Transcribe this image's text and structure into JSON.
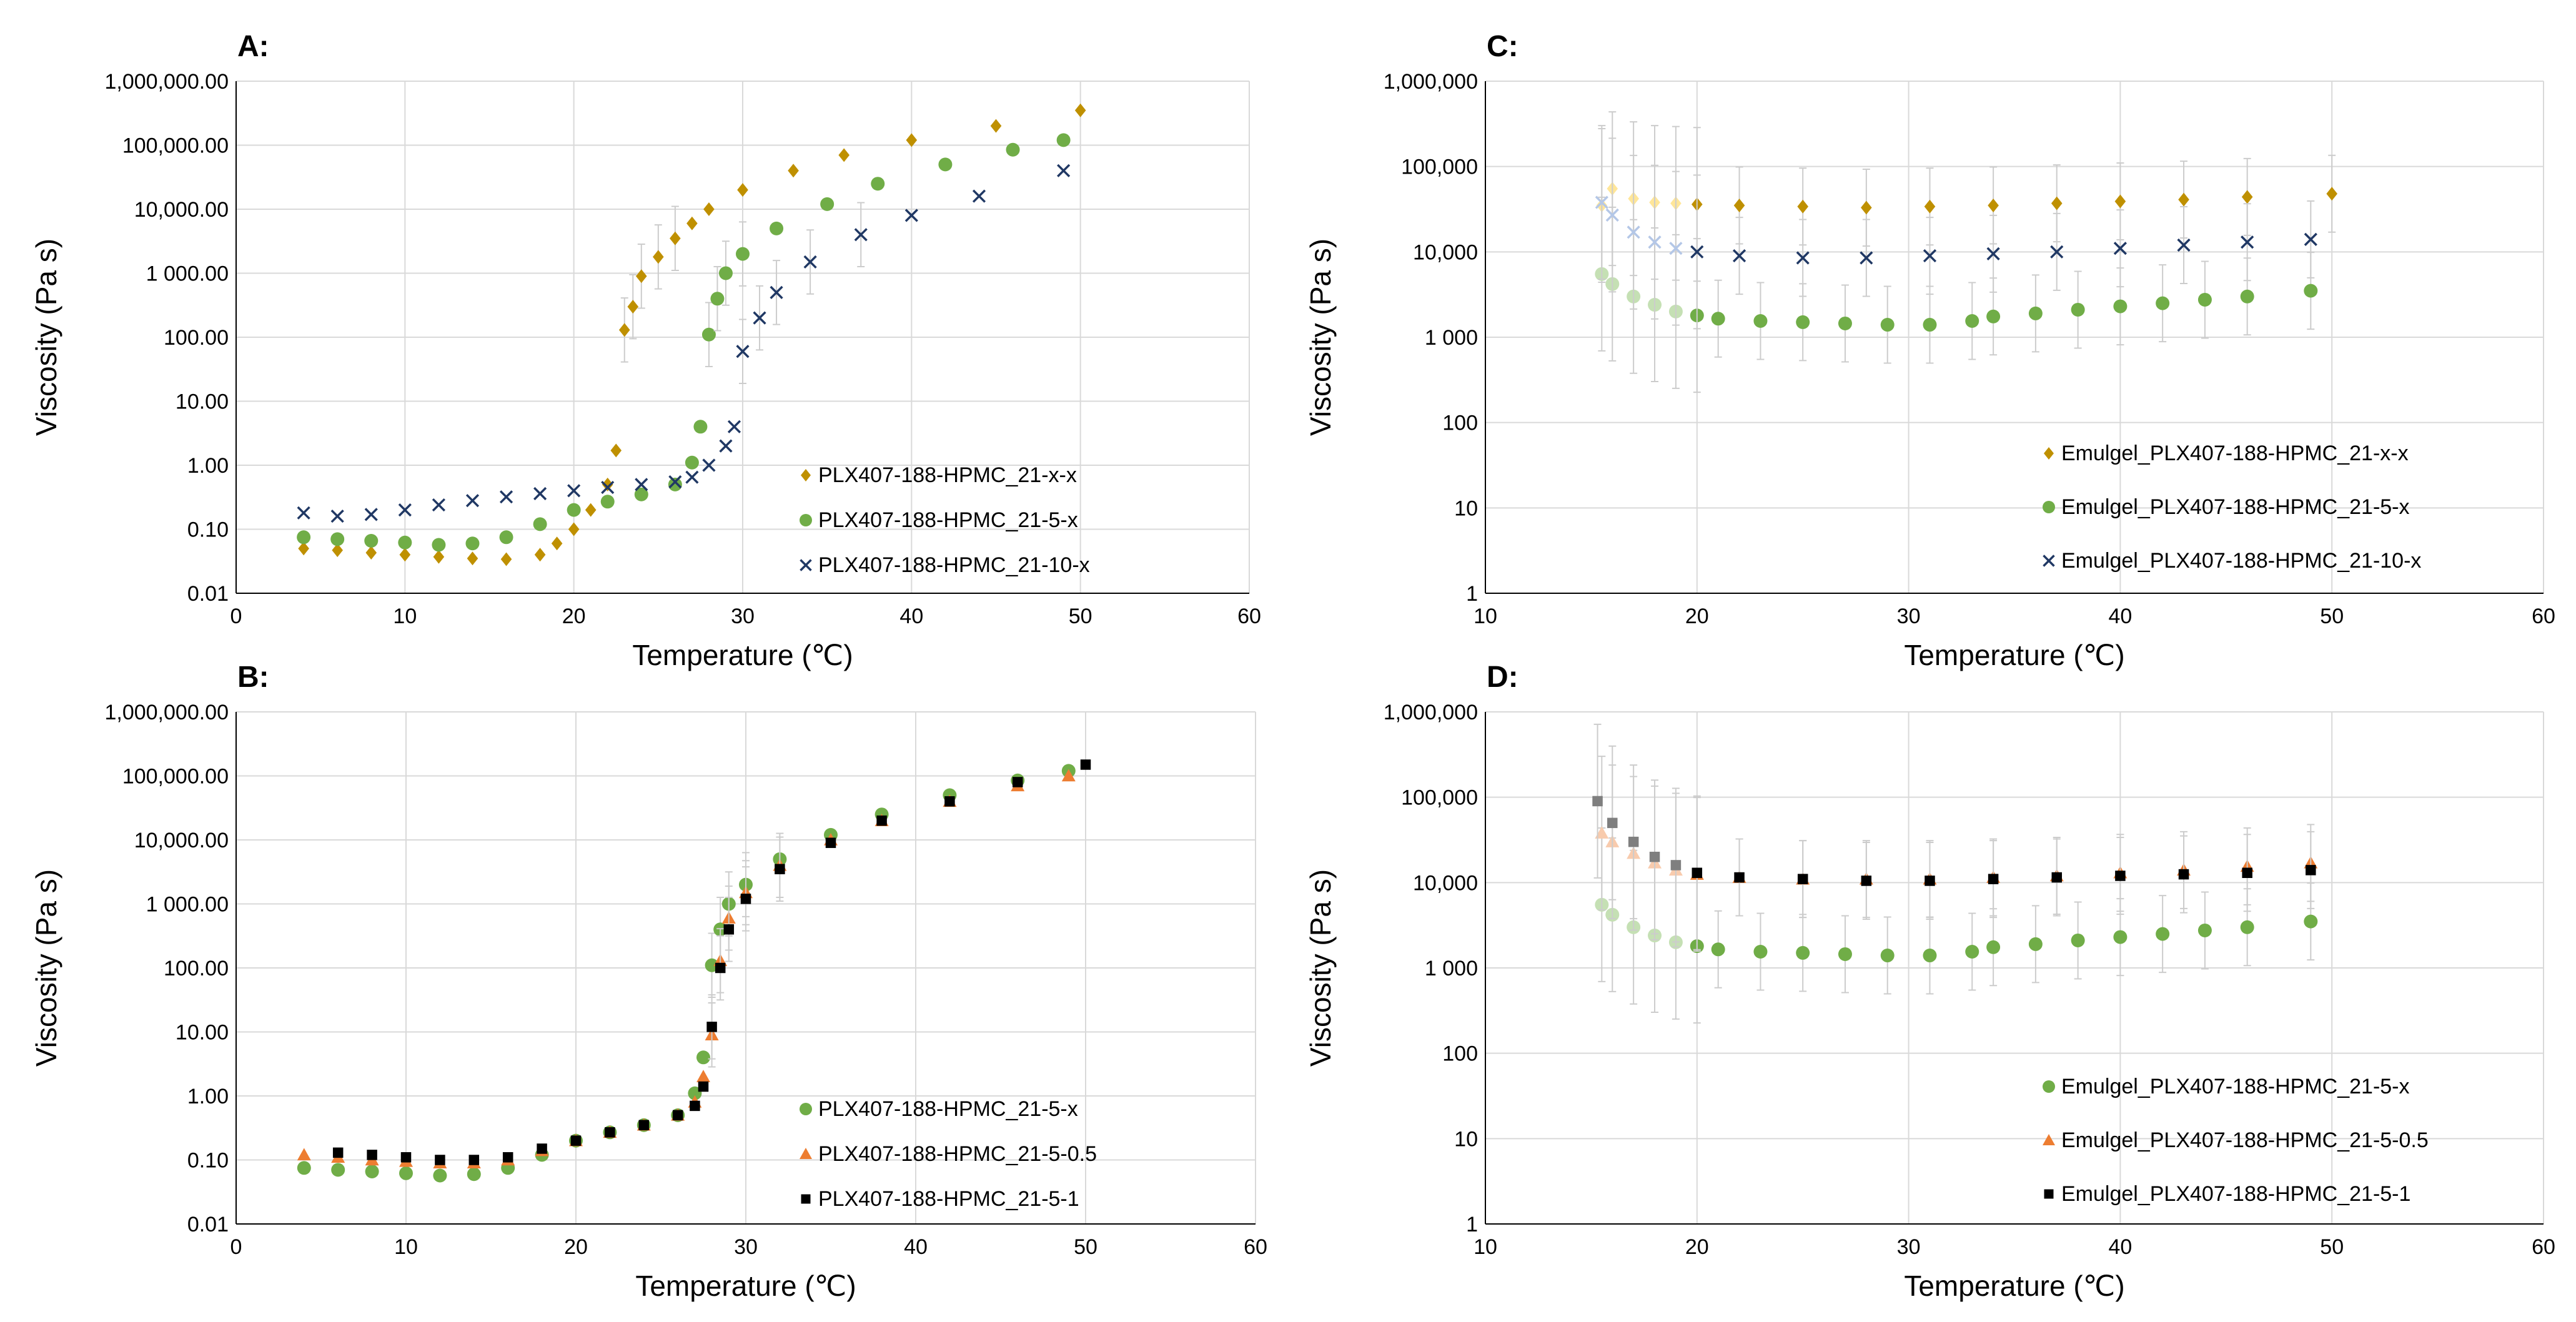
{
  "chart_data": [
    {
      "id": "A",
      "panel_label": "A:",
      "type": "scatter",
      "xlabel": "Temperature (℃)",
      "ylabel": "Viscosity  (Pa s)",
      "xlim": [
        0,
        60
      ],
      "xticks": [
        "0",
        "10",
        "20",
        "30",
        "40",
        "50",
        "60"
      ],
      "ylim_log10": [
        -2,
        6
      ],
      "yticks": [
        "0.01",
        "0.10",
        "1.00",
        "10.00",
        "100.00",
        "1 000.00",
        "10,000.00",
        "100,000.00",
        "1,000,000.00"
      ],
      "legend_position": "bottom-right",
      "series": [
        {
          "name": "PLX407-188-HPMC_21-x-x",
          "marker": "diamond",
          "color": "#bf9000",
          "x": [
            4,
            6,
            8,
            10,
            12,
            14,
            16,
            18,
            19,
            20,
            21,
            22,
            22.5,
            23,
            23.5,
            24,
            25,
            26,
            27,
            28,
            30,
            33,
            36,
            40,
            45,
            50
          ],
          "y": [
            0.05,
            0.047,
            0.043,
            0.04,
            0.037,
            0.035,
            0.034,
            0.04,
            0.06,
            0.1,
            0.2,
            0.5,
            1.7,
            130,
            300,
            900,
            1800,
            3500,
            6000,
            10000,
            20000,
            40000,
            70000,
            120000,
            200000,
            350000
          ]
        },
        {
          "name": "PLX407-188-HPMC_21-5-x",
          "marker": "circle",
          "color": "#70ad47",
          "x": [
            4,
            6,
            8,
            10,
            12,
            14,
            16,
            18,
            20,
            22,
            24,
            26,
            27,
            27.5,
            28,
            28.5,
            29,
            30,
            32,
            35,
            38,
            42,
            46,
            49
          ],
          "y": [
            0.075,
            0.07,
            0.066,
            0.062,
            0.057,
            0.06,
            0.075,
            0.12,
            0.2,
            0.27,
            0.35,
            0.5,
            1.1,
            4,
            110,
            400,
            1000,
            2000,
            5000,
            12000,
            25000,
            50000,
            85000,
            120000
          ]
        },
        {
          "name": "PLX407-188-HPMC_21-10-x",
          "marker": "x",
          "color": "#203864",
          "x": [
            4,
            6,
            8,
            10,
            12,
            14,
            16,
            18,
            20,
            22,
            24,
            26,
            27,
            28,
            29,
            29.5,
            30,
            31,
            32,
            34,
            37,
            40,
            44,
            49
          ],
          "y": [
            0.18,
            0.16,
            0.17,
            0.2,
            0.24,
            0.28,
            0.32,
            0.36,
            0.4,
            0.45,
            0.5,
            0.55,
            0.65,
            1,
            2,
            4,
            60,
            200,
            500,
            1500,
            4000,
            8000,
            16000,
            40000
          ]
        }
      ]
    },
    {
      "id": "B",
      "panel_label": "B:",
      "type": "scatter",
      "xlabel": "Temperature (℃)",
      "ylabel": "Viscosity (Pa s)",
      "xlim": [
        0,
        60
      ],
      "xticks": [
        "0",
        "10",
        "20",
        "30",
        "40",
        "50",
        "60"
      ],
      "ylim_log10": [
        -2,
        6
      ],
      "yticks": [
        "0.01",
        "0.10",
        "1.00",
        "10.00",
        "100.00",
        "1 000.00",
        "10,000.00",
        "100,000.00",
        "1,000,000.00"
      ],
      "legend_position": "bottom-right",
      "series": [
        {
          "name": "PLX407-188-HPMC_21-5-x",
          "marker": "circle",
          "color": "#70ad47",
          "x": [
            4,
            6,
            8,
            10,
            12,
            14,
            16,
            18,
            20,
            22,
            24,
            26,
            27,
            27.5,
            28,
            28.5,
            29,
            30,
            32,
            35,
            38,
            42,
            46,
            49
          ],
          "y": [
            0.075,
            0.07,
            0.066,
            0.062,
            0.057,
            0.06,
            0.075,
            0.12,
            0.2,
            0.27,
            0.35,
            0.5,
            1.1,
            4,
            110,
            400,
            1000,
            2000,
            5000,
            12000,
            25000,
            50000,
            85000,
            120000
          ]
        },
        {
          "name": "PLX407-188-HPMC_21-5-0.5",
          "marker": "triangle",
          "color": "#ed7d31",
          "x": [
            4,
            6,
            8,
            10,
            12,
            14,
            16,
            18,
            20,
            22,
            24,
            26,
            27,
            27.5,
            28,
            28.5,
            29,
            30,
            32,
            35,
            38,
            42,
            46,
            49
          ],
          "y": [
            0.12,
            0.11,
            0.1,
            0.095,
            0.09,
            0.09,
            0.1,
            0.14,
            0.2,
            0.27,
            0.35,
            0.5,
            0.8,
            2,
            9,
            130,
            600,
            1500,
            4000,
            10000,
            20000,
            40000,
            70000,
            100000
          ]
        },
        {
          "name": "PLX407-188-HPMC_21-5-1",
          "marker": "square",
          "color": "#000000",
          "x": [
            6,
            8,
            10,
            12,
            14,
            16,
            18,
            20,
            22,
            24,
            26,
            27,
            27.5,
            28,
            28.5,
            29,
            30,
            32,
            35,
            38,
            42,
            46,
            50
          ],
          "y": [
            0.13,
            0.12,
            0.11,
            0.1,
            0.1,
            0.11,
            0.15,
            0.2,
            0.27,
            0.35,
            0.5,
            0.7,
            1.4,
            12,
            100,
            400,
            1200,
            3500,
            9000,
            20000,
            40000,
            80000,
            150000
          ]
        }
      ]
    },
    {
      "id": "C",
      "panel_label": "C:",
      "type": "scatter",
      "xlabel": "Temperature (℃)",
      "ylabel": "Viscosity (Pa s)",
      "xlim": [
        10,
        60
      ],
      "xticks": [
        "10",
        "20",
        "30",
        "40",
        "50",
        "60"
      ],
      "ylim_log10": [
        0,
        6
      ],
      "yticks": [
        "1",
        "10",
        "100",
        "1 000",
        "10,000",
        "100,000",
        "1,000,000"
      ],
      "legend_position": "bottom-right",
      "series": [
        {
          "name": "Emulgel_PLX407-188-HPMC_21-x-x",
          "marker": "diamond",
          "color": "#bf9000",
          "faded_color": "#ffe699",
          "x": [
            15.5,
            16,
            17,
            18,
            19,
            20,
            22,
            25,
            28,
            31,
            34,
            37,
            40,
            43,
            46,
            50
          ],
          "y": [
            35000,
            55000,
            42000,
            38000,
            37000,
            36000,
            35000,
            34000,
            33000,
            34000,
            35000,
            37000,
            39000,
            41000,
            44000,
            48000
          ]
        },
        {
          "name": "Emulgel_PLX407-188-HPMC_21-5-x",
          "marker": "circle",
          "color": "#70ad47",
          "faded_color": "#c5e0b4",
          "x": [
            15.5,
            16,
            17,
            18,
            19,
            20,
            21,
            23,
            25,
            27,
            29,
            31,
            33,
            34,
            36,
            38,
            40,
            42,
            44,
            46,
            49
          ],
          "y": [
            5500,
            4200,
            3000,
            2400,
            2000,
            1800,
            1650,
            1550,
            1500,
            1450,
            1400,
            1400,
            1550,
            1750,
            1900,
            2100,
            2300,
            2500,
            2750,
            3000,
            3500
          ]
        },
        {
          "name": "Emulgel_PLX407-188-HPMC_21-10-x",
          "marker": "x",
          "color": "#203864",
          "faded_color": "#b4c7e7",
          "x": [
            15.5,
            16,
            17,
            18,
            19,
            20,
            22,
            25,
            28,
            31,
            34,
            37,
            40,
            43,
            46,
            49
          ],
          "y": [
            38000,
            27000,
            17000,
            13000,
            11000,
            10000,
            9000,
            8500,
            8500,
            9000,
            9500,
            10000,
            11000,
            12000,
            13000,
            14000
          ]
        }
      ]
    },
    {
      "id": "D",
      "panel_label": "D:",
      "type": "scatter",
      "xlabel": "Temperature (℃)",
      "ylabel": "Viscosity (Pa s)",
      "xlim": [
        10,
        60
      ],
      "xticks": [
        "10",
        "20",
        "30",
        "40",
        "50",
        "60"
      ],
      "ylim_log10": [
        0,
        6
      ],
      "yticks": [
        "1",
        "10",
        "100",
        "1 000",
        "10,000",
        "100,000",
        "1,000,000"
      ],
      "legend_position": "bottom-right",
      "series": [
        {
          "name": "Emulgel_PLX407-188-HPMC_21-5-x",
          "marker": "circle",
          "color": "#70ad47",
          "faded_color": "#c5e0b4",
          "x": [
            15.5,
            16,
            17,
            18,
            19,
            20,
            21,
            23,
            25,
            27,
            29,
            31,
            33,
            34,
            36,
            38,
            40,
            42,
            44,
            46,
            49
          ],
          "y": [
            5500,
            4200,
            3000,
            2400,
            2000,
            1800,
            1650,
            1550,
            1500,
            1450,
            1400,
            1400,
            1550,
            1750,
            1900,
            2100,
            2300,
            2500,
            2750,
            3000,
            3500
          ]
        },
        {
          "name": "Emulgel_PLX407-188-HPMC_21-5-0.5",
          "marker": "triangle",
          "color": "#ed7d31",
          "faded_color": "#f8cbad",
          "x": [
            15.5,
            16,
            17,
            18,
            19,
            20,
            22,
            25,
            28,
            31,
            34,
            37,
            40,
            43,
            46,
            49
          ],
          "y": [
            38000,
            30000,
            22000,
            17000,
            14000,
            12500,
            11500,
            11000,
            11000,
            11000,
            11500,
            12000,
            13000,
            14000,
            15500,
            17000
          ]
        },
        {
          "name": "Emulgel_PLX407-188-HPMC_21-5-1",
          "marker": "square",
          "color": "#000000",
          "faded_color": "#7f7f7f",
          "x": [
            15.3,
            16,
            17,
            18,
            19,
            20,
            22,
            25,
            28,
            31,
            34,
            37,
            40,
            43,
            46,
            49
          ],
          "y": [
            90000,
            50000,
            30000,
            20000,
            16000,
            13000,
            11500,
            11000,
            10500,
            10500,
            11000,
            11500,
            12000,
            12500,
            13000,
            14000
          ]
        }
      ]
    }
  ]
}
